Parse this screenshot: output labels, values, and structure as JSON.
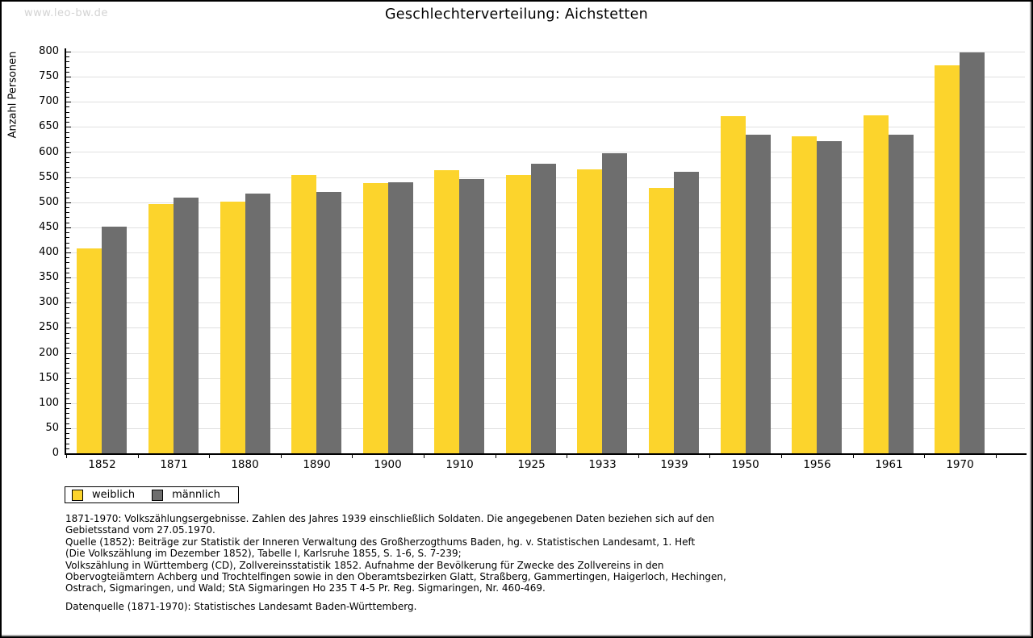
{
  "watermark": "www.leo-bw.de",
  "header": {
    "title": "Geschlechterverteilung: Aichstetten"
  },
  "chart_data": {
    "type": "bar",
    "title": "Geschlechterverteilung: Aichstetten",
    "categories": [
      "1852",
      "1871",
      "1880",
      "1890",
      "1900",
      "1910",
      "1925",
      "1933",
      "1939",
      "1950",
      "1956",
      "1961",
      "1970"
    ],
    "series": [
      {
        "name": "weiblich",
        "color": "#FCD42C",
        "values": [
          408,
          497,
          502,
          555,
          538,
          564,
          554,
          565,
          529,
          672,
          631,
          673,
          772
        ]
      },
      {
        "name": "männlich",
        "color": "#6E6E6E",
        "values": [
          451,
          509,
          517,
          520,
          539,
          546,
          577,
          597,
          561,
          634,
          621,
          634,
          798
        ]
      }
    ],
    "xlabel": "",
    "ylabel": "Anzahl Personen",
    "ylim": [
      0,
      800
    ],
    "ytick_step": 50,
    "yminor_step": 10,
    "grid": true,
    "legend_position": "below-left"
  },
  "legend": {
    "items": [
      {
        "label": "weiblich",
        "color": "#FCD42C"
      },
      {
        "label": "männlich",
        "color": "#6E6E6E"
      }
    ]
  },
  "notes": {
    "lines": [
      "1871-1970: Volkszählungsergebnisse. Zahlen des Jahres 1939 einschließlich Soldaten. Die angegebenen Daten beziehen sich auf den",
      "Gebietsstand vom 27.05.1970.",
      "Quelle (1852): Beiträge zur Statistik der Inneren Verwaltung des Großherzogthums Baden, hg. v. Statistischen Landesamt, 1. Heft",
      "(Die Volkszählung im Dezember 1852), Tabelle I, Karlsruhe 1855, S. 1-6, S. 7-239;",
      "Volkszählung in Württemberg (CD), Zollvereinsstatistik 1852. Aufnahme der Bevölkerung für Zwecke des Zollvereins in den",
      "Obervogteiämtern Achberg und Trochtelfingen sowie in den Oberamtsbezirken Glatt, Straßberg, Gammertingen, Haigerloch, Hechingen,",
      "Ostrach, Sigmaringen, und Wald; StA Sigmaringen Ho 235 T 4-5 Pr. Reg. Sigmaringen, Nr. 460-469."
    ],
    "source": "Datenquelle (1871-1970): Statistisches Landesamt Baden-Württemberg."
  },
  "colors": {
    "grid": "#E0E0E0",
    "axis": "#000000",
    "watermark": "#D3D3D3"
  }
}
